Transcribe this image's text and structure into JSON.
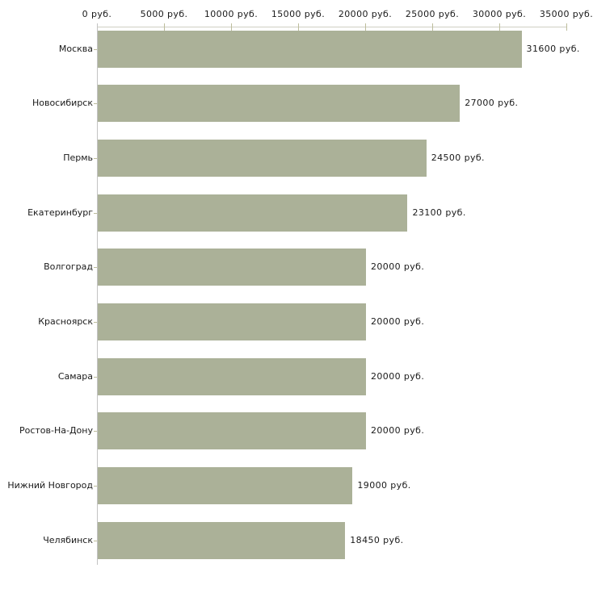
{
  "chart_data": {
    "type": "bar",
    "orientation": "horizontal",
    "title": "",
    "xlabel": "",
    "ylabel": "",
    "unit": "руб.",
    "categories": [
      "Москва",
      "Новосибирск",
      "Пермь",
      "Екатеринбург",
      "Волгоград",
      "Красноярск",
      "Самара",
      "Ростов-На-Дону",
      "Нижний Новгород",
      "Челябинск"
    ],
    "values": [
      31600,
      27000,
      24500,
      23100,
      20000,
      20000,
      20000,
      20000,
      19000,
      18450
    ],
    "value_labels": [
      "31600 руб.",
      "27000 руб.",
      "24500 руб.",
      "23100 руб.",
      "20000 руб.",
      "20000 руб.",
      "20000 руб.",
      "20000 руб.",
      "19000 руб.",
      "18450 руб."
    ],
    "x_axis_ticks": [
      0,
      5000,
      10000,
      15000,
      20000,
      25000,
      30000,
      35000
    ],
    "x_axis_tick_labels": [
      "0 руб.",
      "5000 руб.",
      "10000 руб.",
      "15000 руб.",
      "20000 руб.",
      "25000 руб.",
      "30000 руб.",
      "35000 руб."
    ],
    "xlim": [
      0,
      35000
    ],
    "axis_position": "top",
    "grid": false,
    "legend": false,
    "colors": {
      "bar_fill": "#abb198",
      "axis_line_horizontal": "#cfcfc3",
      "axis_line_vertical": "#c3c3c3",
      "tick_mark": "#bdbd9c",
      "text": "#1a1a1a",
      "background": "#ffffff"
    }
  }
}
